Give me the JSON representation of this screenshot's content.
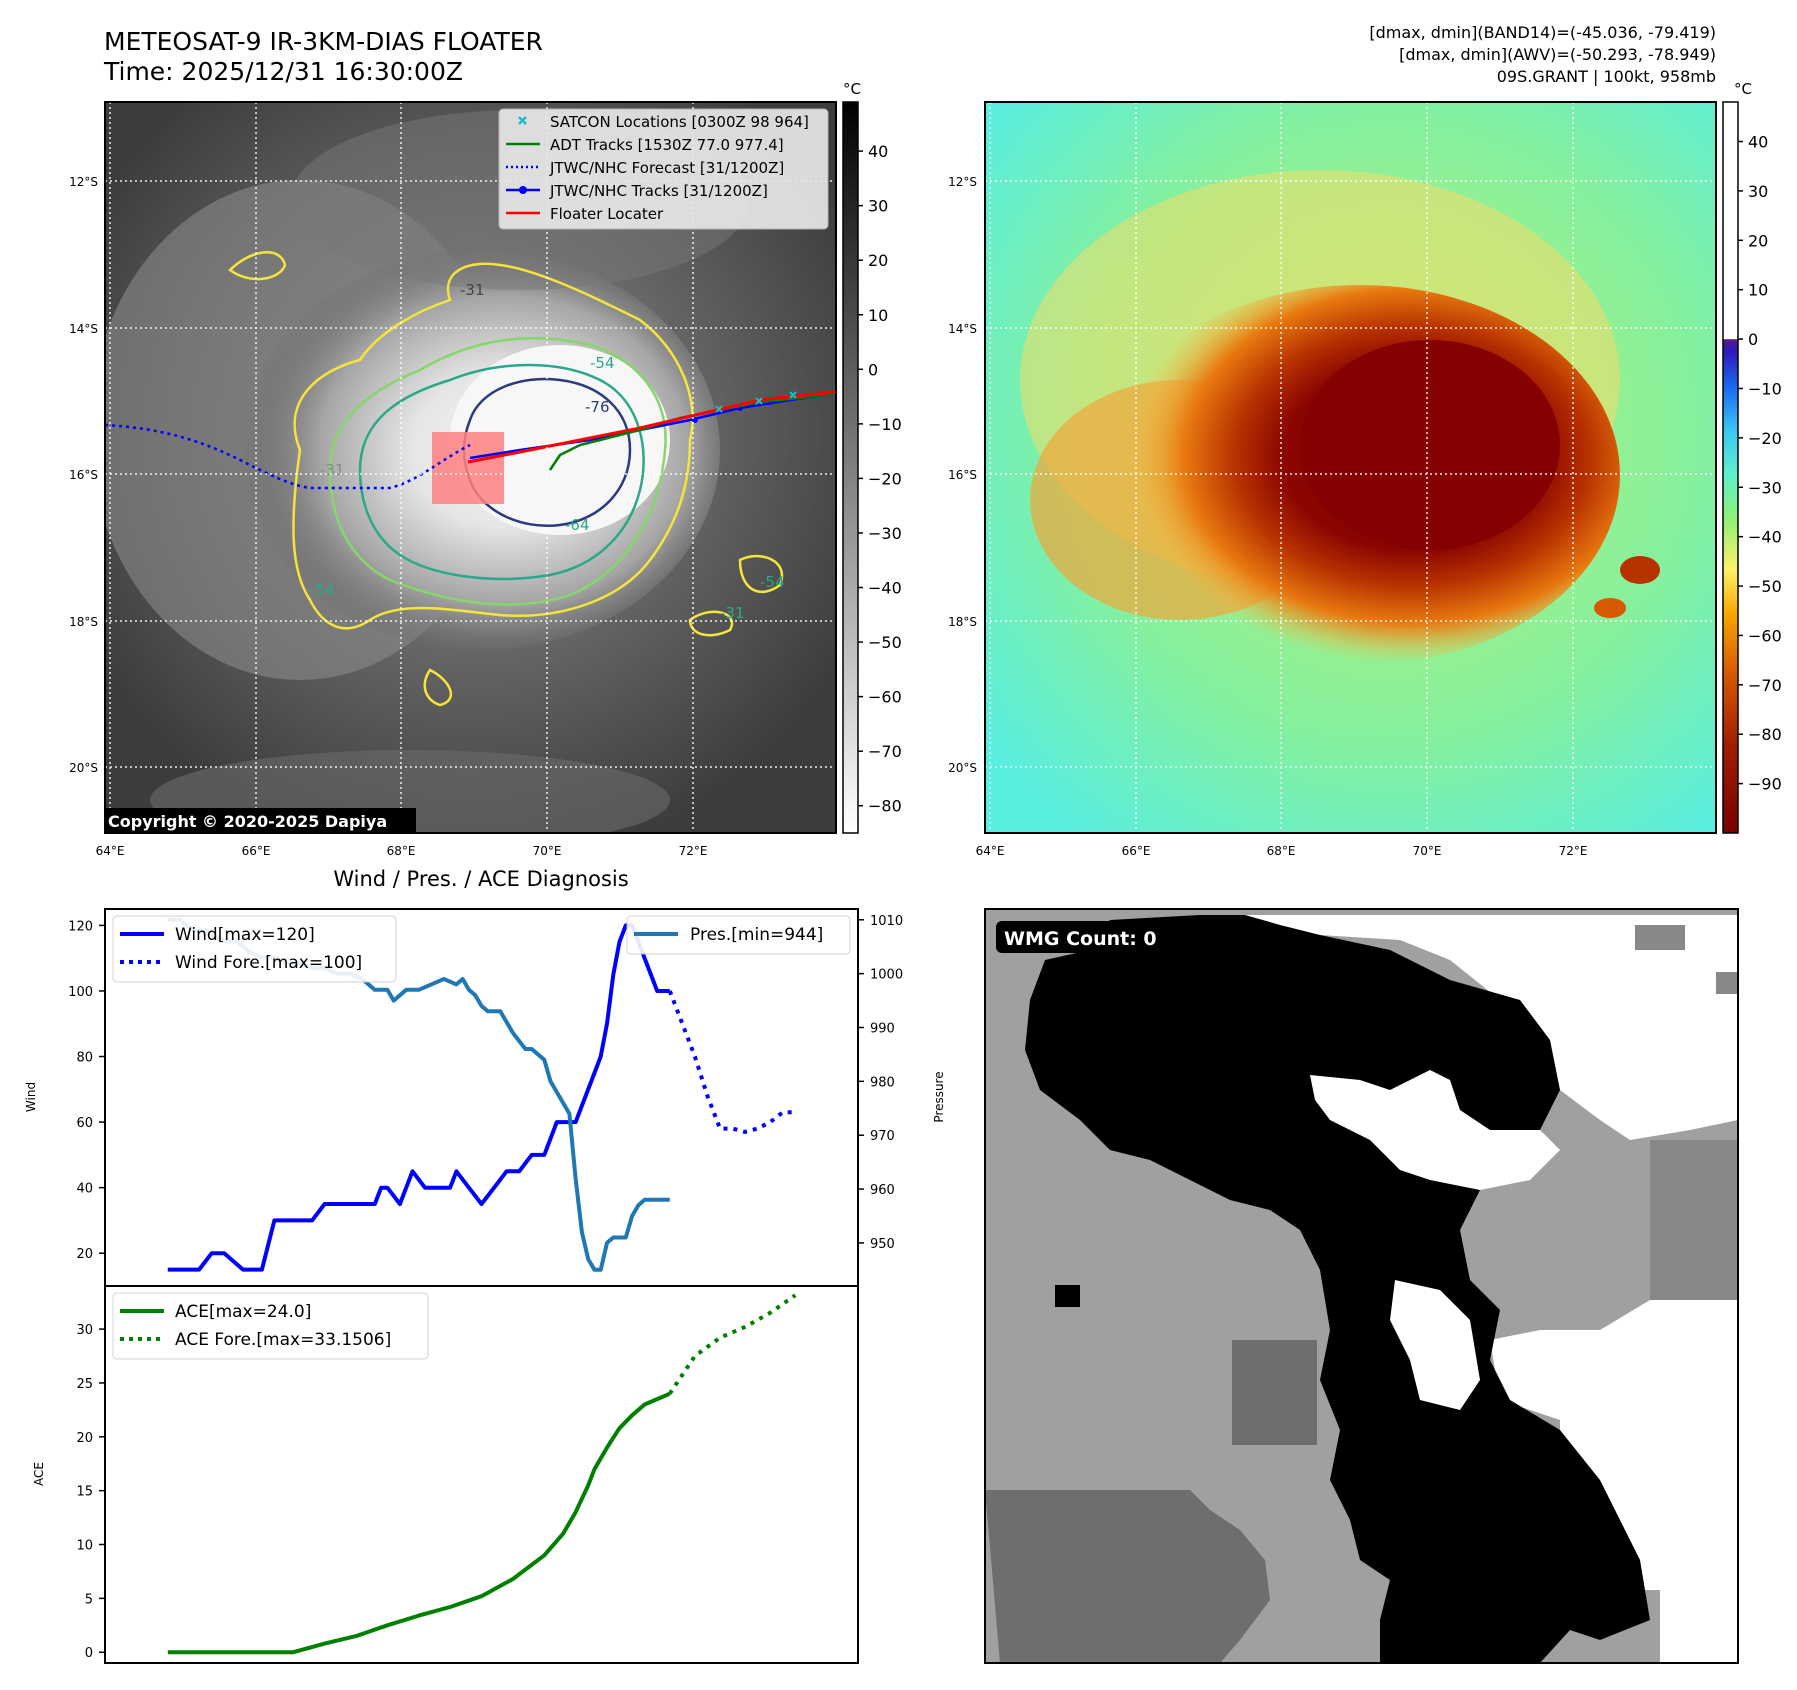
{
  "header": {
    "title_line1": "METEOSAT-9 IR-3KM-DIAS FLOATER",
    "title_line2": "Time: 2025/12/31 16:30:00Z",
    "info_line1": "[dmax, dmin](BAND14)=(-45.036, -79.419)",
    "info_line2": "[dmax, dmin](AWV)=(-50.293, -78.949)",
    "info_line3": "09S.GRANT | 100kt, 958mb"
  },
  "map": {
    "lat_labels": [
      "12°S",
      "14°S",
      "16°S",
      "18°S",
      "20°S"
    ],
    "lon_labels": [
      "64°E",
      "66°E",
      "68°E",
      "70°E",
      "72°E"
    ],
    "lat_values": [
      -12,
      -14,
      -16,
      -18,
      -20
    ],
    "lon_values": [
      64,
      66,
      68,
      70,
      72
    ],
    "copyright": "Copyright © 2020-2025 Dapiya",
    "contour_labels": [
      "-31",
      "-54",
      "-76",
      "-64",
      "-54",
      "-31",
      "-54",
      "-31"
    ],
    "legend": [
      {
        "label": "SATCON Locations [0300Z 98 964]",
        "color": "#17becf"
      },
      {
        "label": "ADT Tracks [1530Z 77.0 977.4]",
        "color": "#008000"
      },
      {
        "label": "JTWC/NHC Forecast [31/1200Z]",
        "color": "#0000ff"
      },
      {
        "label": "JTWC/NHC Tracks [31/1200Z]",
        "color": "#0000ff"
      },
      {
        "label": "Floater Locater",
        "color": "#ff0000"
      }
    ]
  },
  "colorbar_gray": {
    "unit": "°C",
    "ticks": [
      40,
      30,
      20,
      10,
      0,
      -10,
      -20,
      -30,
      -40,
      -50,
      -60,
      -70,
      -80
    ],
    "tick_labels": [
      "40",
      "30",
      "20",
      "10",
      "0",
      "−10",
      "−20",
      "−30",
      "−40",
      "−50",
      "−60",
      "−70",
      "−80"
    ],
    "range": [
      -85,
      49
    ]
  },
  "colorbar_color": {
    "unit": "°C",
    "ticks": [
      40,
      30,
      20,
      10,
      0,
      -10,
      -20,
      -30,
      -40,
      -50,
      -60,
      -70,
      -80,
      -90
    ],
    "tick_labels": [
      "40",
      "30",
      "20",
      "10",
      "0",
      "−10",
      "−20",
      "−30",
      "−40",
      "−50",
      "−60",
      "−70",
      "−80",
      "−90"
    ],
    "range": [
      -100,
      48
    ]
  },
  "diagnosis": {
    "title": "Wind / Pres. / ACE Diagnosis"
  },
  "wmg": {
    "label": "WMG Count: 0"
  },
  "chart_data": [
    {
      "type": "line",
      "title": "Wind / Pres. / ACE Diagnosis",
      "ylabel": "Wind",
      "y2label": "Pressure",
      "ylim": [
        10,
        125
      ],
      "y2lim": [
        942,
        1012
      ],
      "yticks": [
        20,
        40,
        60,
        80,
        100,
        120
      ],
      "y2ticks": [
        950,
        960,
        970,
        980,
        990,
        1000,
        1010
      ],
      "series": [
        {
          "name": "Wind[max=120]",
          "color": "#0000ff",
          "style": "solid",
          "x": [
            0,
            3,
            5,
            7,
            9,
            12,
            15,
            17,
            20,
            23,
            25,
            28,
            30,
            33,
            34,
            35,
            37,
            39,
            41,
            43,
            45,
            46,
            48,
            50,
            52,
            54,
            56,
            58,
            60,
            62,
            64,
            65,
            66,
            67,
            68,
            69,
            70,
            71,
            72,
            73,
            74,
            75,
            76,
            78,
            80
          ],
          "y": [
            15,
            15,
            15,
            20,
            20,
            15,
            15,
            30,
            30,
            30,
            35,
            35,
            35,
            35,
            40,
            40,
            35,
            45,
            40,
            40,
            40,
            45,
            40,
            35,
            40,
            45,
            45,
            50,
            50,
            60,
            60,
            60,
            65,
            70,
            75,
            80,
            90,
            105,
            115,
            120,
            120,
            115,
            110,
            100,
            100
          ]
        },
        {
          "name": "Wind Fore.[max=100]",
          "color": "#0000ff",
          "style": "dotted",
          "x": [
            80,
            82,
            84,
            86,
            88,
            90,
            92,
            94,
            96,
            98,
            100
          ],
          "y": [
            100,
            90,
            80,
            68,
            58,
            58,
            57,
            58,
            60,
            63,
            63
          ]
        },
        {
          "name": "Pres.[min=944]",
          "color": "#1f77b4",
          "style": "solid",
          "axis": "right",
          "x": [
            0,
            2,
            4,
            6,
            9,
            11,
            13,
            15,
            17,
            19,
            21,
            23,
            25,
            27,
            29,
            31,
            33,
            35,
            36,
            38,
            40,
            42,
            44,
            46,
            47,
            48,
            49,
            50,
            51,
            53,
            55,
            57,
            58,
            60,
            61,
            62,
            63,
            64,
            65,
            66,
            67,
            68,
            69,
            70,
            71,
            72,
            73,
            74,
            75,
            76,
            77,
            78,
            79,
            80
          ],
          "y": [
            1010,
            1010,
            1008,
            1008,
            1006,
            1006,
            1004,
            1003,
            1003,
            1002,
            1002,
            1001,
            1001,
            1000,
            1000,
            999,
            997,
            997,
            995,
            997,
            997,
            998,
            999,
            998,
            999,
            997,
            996,
            994,
            993,
            993,
            989,
            986,
            986,
            984,
            980,
            978,
            976,
            974,
            962,
            952,
            947,
            945,
            945,
            950,
            951,
            951,
            951,
            955,
            957,
            958,
            958,
            958,
            958,
            958
          ]
        }
      ]
    },
    {
      "type": "line",
      "ylabel": "ACE",
      "ylim": [
        -1,
        34
      ],
      "yticks": [
        0,
        5,
        10,
        15,
        20,
        25,
        30
      ],
      "series": [
        {
          "name": "ACE[max=24.0]",
          "color": "#008000",
          "style": "solid",
          "x": [
            0,
            20,
            25,
            30,
            35,
            40,
            45,
            50,
            55,
            60,
            63,
            65,
            67,
            68,
            70,
            72,
            74,
            76,
            78,
            80
          ],
          "y": [
            0,
            0,
            0.8,
            1.5,
            2.5,
            3.4,
            4.2,
            5.2,
            6.8,
            9,
            11,
            13,
            15.5,
            17,
            19,
            20.8,
            22,
            23,
            23.5,
            24
          ]
        },
        {
          "name": "ACE Fore.[max=33.1506]",
          "color": "#008000",
          "style": "dotted",
          "x": [
            80,
            84,
            88,
            92,
            96,
            100
          ],
          "y": [
            24,
            27.5,
            29.2,
            30.2,
            31.5,
            33.15
          ]
        }
      ]
    }
  ]
}
